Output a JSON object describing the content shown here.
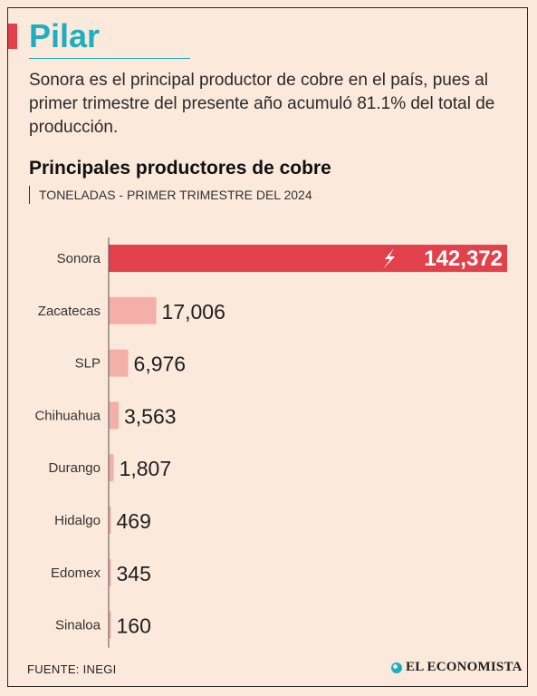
{
  "header": {
    "brand": "Pilar",
    "intro": "Sonora es el principal productor de cobre en el país, pues al primer trimestre del presente año acumuló 81.1% del total de producción."
  },
  "chart_data": {
    "type": "bar",
    "orientation": "horizontal",
    "title": "Principales productores de cobre",
    "subtitle": "TONELADAS - PRIMER TRIMESTRE DEL 2024",
    "categories": [
      "Sonora",
      "Zacatecas",
      "SLP",
      "Chihuahua",
      "Durango",
      "Hidalgo",
      "Edomex",
      "Sinaloa"
    ],
    "values": [
      142372,
      17006,
      6976,
      3563,
      1807,
      469,
      345,
      160
    ],
    "value_labels": [
      "142,372",
      "17,006",
      "6,976",
      "3,563",
      "1,807",
      "469",
      "345",
      "160"
    ],
    "highlight_index": 0,
    "colors": {
      "highlight": "#e2404a",
      "bar": "#f4b0a8",
      "axis": "#555555",
      "highlight_label": "#ffffff",
      "label": "#1e1e1e"
    }
  },
  "footer": {
    "source": "FUENTE: INEGI",
    "logo": "EL ECONOMISTA"
  }
}
